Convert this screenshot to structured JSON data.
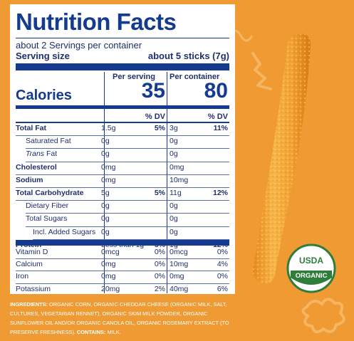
{
  "panel": {
    "title": "Nutrition Facts",
    "servings_line": "about 2 Servings per container",
    "serving_size_label": "Serving size",
    "serving_size_value": "about 5 sticks (7g)",
    "per_serving_label": "Per serving",
    "per_container_label": "Per container",
    "calories_label": "Calories",
    "calories_serving": "35",
    "calories_container": "80",
    "dv_label": "% DV"
  },
  "rows": [
    {
      "name": "Total Fat",
      "bold": true,
      "s_amt": "1.5g",
      "s_dv": "5%",
      "c_amt": "3g",
      "c_dv": "11%"
    },
    {
      "name": "Saturated Fat",
      "indent": 1,
      "s_amt": "0g",
      "s_dv": "",
      "c_amt": "0g",
      "c_dv": ""
    },
    {
      "name": "Trans Fat",
      "indent": 1,
      "italic_first": "Trans",
      "rest": " Fat",
      "s_amt": "0g",
      "s_dv": "",
      "c_amt": "0g",
      "c_dv": ""
    },
    {
      "name": "Cholesterol",
      "bold": true,
      "s_amt": "0mg",
      "s_dv": "",
      "c_amt": "0mg",
      "c_dv": ""
    },
    {
      "name": "Sodium",
      "bold": true,
      "s_amt": "0mg",
      "s_dv": "",
      "c_amt": "10mg",
      "c_dv": ""
    },
    {
      "name": "Total Carbohydrate",
      "bold": true,
      "s_amt": "5g",
      "s_dv": "5%",
      "c_amt": "11g",
      "c_dv": "12%"
    },
    {
      "name": "Dietary Fiber",
      "indent": 1,
      "s_amt": "0g",
      "s_dv": "",
      "c_amt": "0g",
      "c_dv": ""
    },
    {
      "name": "Total Sugars",
      "indent": 1,
      "s_amt": "0g",
      "s_dv": "",
      "c_amt": "0g",
      "c_dv": ""
    },
    {
      "name": "Incl. Added Sugars",
      "indent": 2,
      "s_amt": "0g",
      "s_dv": "",
      "c_amt": "0g",
      "c_dv": ""
    },
    {
      "name": "Protein",
      "bold": true,
      "s_amt": "Less than 1g",
      "s_dv": "5%",
      "c_amt": "1g",
      "c_dv": "12%"
    }
  ],
  "vitamins": [
    {
      "name": "Vitamin D",
      "s_amt": "0mcg",
      "s_dv": "0%",
      "c_amt": "0mcg",
      "c_dv": "0%"
    },
    {
      "name": "Calcium",
      "s_amt": "0mg",
      "s_dv": "0%",
      "c_amt": "10mg",
      "c_dv": "4%"
    },
    {
      "name": "Iron",
      "s_amt": "0mg",
      "s_dv": "0%",
      "c_amt": "0mg",
      "c_dv": "0%"
    },
    {
      "name": "Potassium",
      "s_amt": "20mg",
      "s_dv": "2%",
      "c_amt": "40mg",
      "c_dv": "6%"
    }
  ],
  "ingredients": {
    "label": "Ingredients:",
    "text": " Organic corn, organic cheddar cheese (organic milk, salt, cultures, vegetarian rennet), organic skim milk powder, organic sunflower oil and/or organic canola oil, organic rosemary extract (to preserve freshness). ",
    "contains_label": "Contains:",
    "contains_text": " Milk."
  },
  "badge": {
    "top": "USDA",
    "bottom": "ORGANIC"
  },
  "colors": {
    "background": "#ef9a33",
    "label_blue": "#143b8f",
    "badge_green": "#2f7d3a"
  }
}
